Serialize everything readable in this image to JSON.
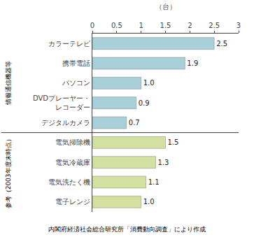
{
  "chart_data": {
    "type": "bar",
    "orientation": "horizontal",
    "xlabel": "（台）",
    "footnote": "内閣府経済社会総合研究所「消費動向調査」により作成",
    "series": [
      {
        "name": "情報通信機器等",
        "color": "#a8d0d8",
        "categories": [
          "カラーテレビ",
          "携帯電話",
          "パソコン",
          "DVDプレーヤー・\nレコーダー",
          "デジタルカメラ"
        ],
        "values": [
          2.5,
          1.9,
          1.0,
          0.9,
          0.7
        ],
        "value_labels": [
          "2.5",
          "1.9",
          "1.0",
          "0.9",
          "0.7"
        ]
      },
      {
        "name": "参考（2003年度末時点）",
        "color": "#d4e0a0",
        "categories": [
          "電気掃除機",
          "電気冷蔵庫",
          "電気洗たく機",
          "電子レンジ"
        ],
        "values": [
          1.5,
          1.3,
          1.1,
          1.0
        ],
        "value_labels": [
          "1.5",
          "1.3",
          "1.1",
          "1.0"
        ]
      }
    ],
    "xlim": [
      0,
      3
    ],
    "xticks": [
      0,
      0.5,
      1,
      1.5,
      2,
      2.5,
      3
    ],
    "data_labels": true,
    "grid": false
  }
}
